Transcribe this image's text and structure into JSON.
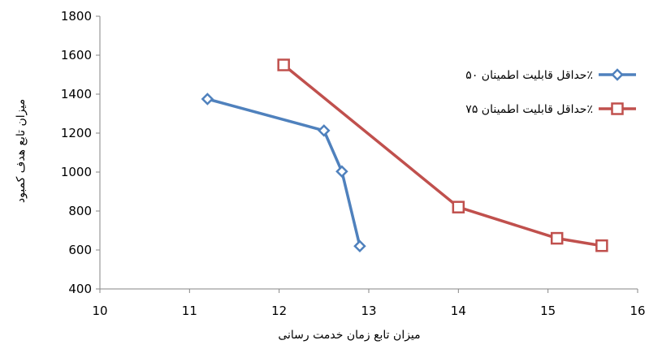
{
  "chart_data": {
    "type": "scatter",
    "title": "",
    "xlabel": "میزان تابع زمان خدمت رسانی",
    "ylabel": "میزان تابع هدف کمبود",
    "xlim": [
      10,
      16
    ],
    "ylim": [
      400,
      1800
    ],
    "xticks": [
      10,
      11,
      12,
      13,
      14,
      15,
      16
    ],
    "yticks": [
      400,
      600,
      800,
      1000,
      1200,
      1400,
      1600,
      1800
    ],
    "grid": false,
    "legend_position": "right",
    "series": [
      {
        "name": "حداقل قابلیت اطمینان ۵۰٪",
        "color": "#4f81bd",
        "marker": "diamond",
        "x": [
          11.2,
          12.5,
          12.7,
          12.9
        ],
        "y": [
          1375,
          1213,
          1003,
          620
        ]
      },
      {
        "name": "حداقل قابلیت اطمینان ۷۵٪",
        "color": "#c0504d",
        "marker": "square",
        "x": [
          12.05,
          14.0,
          15.1,
          15.6
        ],
        "y": [
          1550,
          820,
          660,
          622
        ]
      }
    ]
  }
}
